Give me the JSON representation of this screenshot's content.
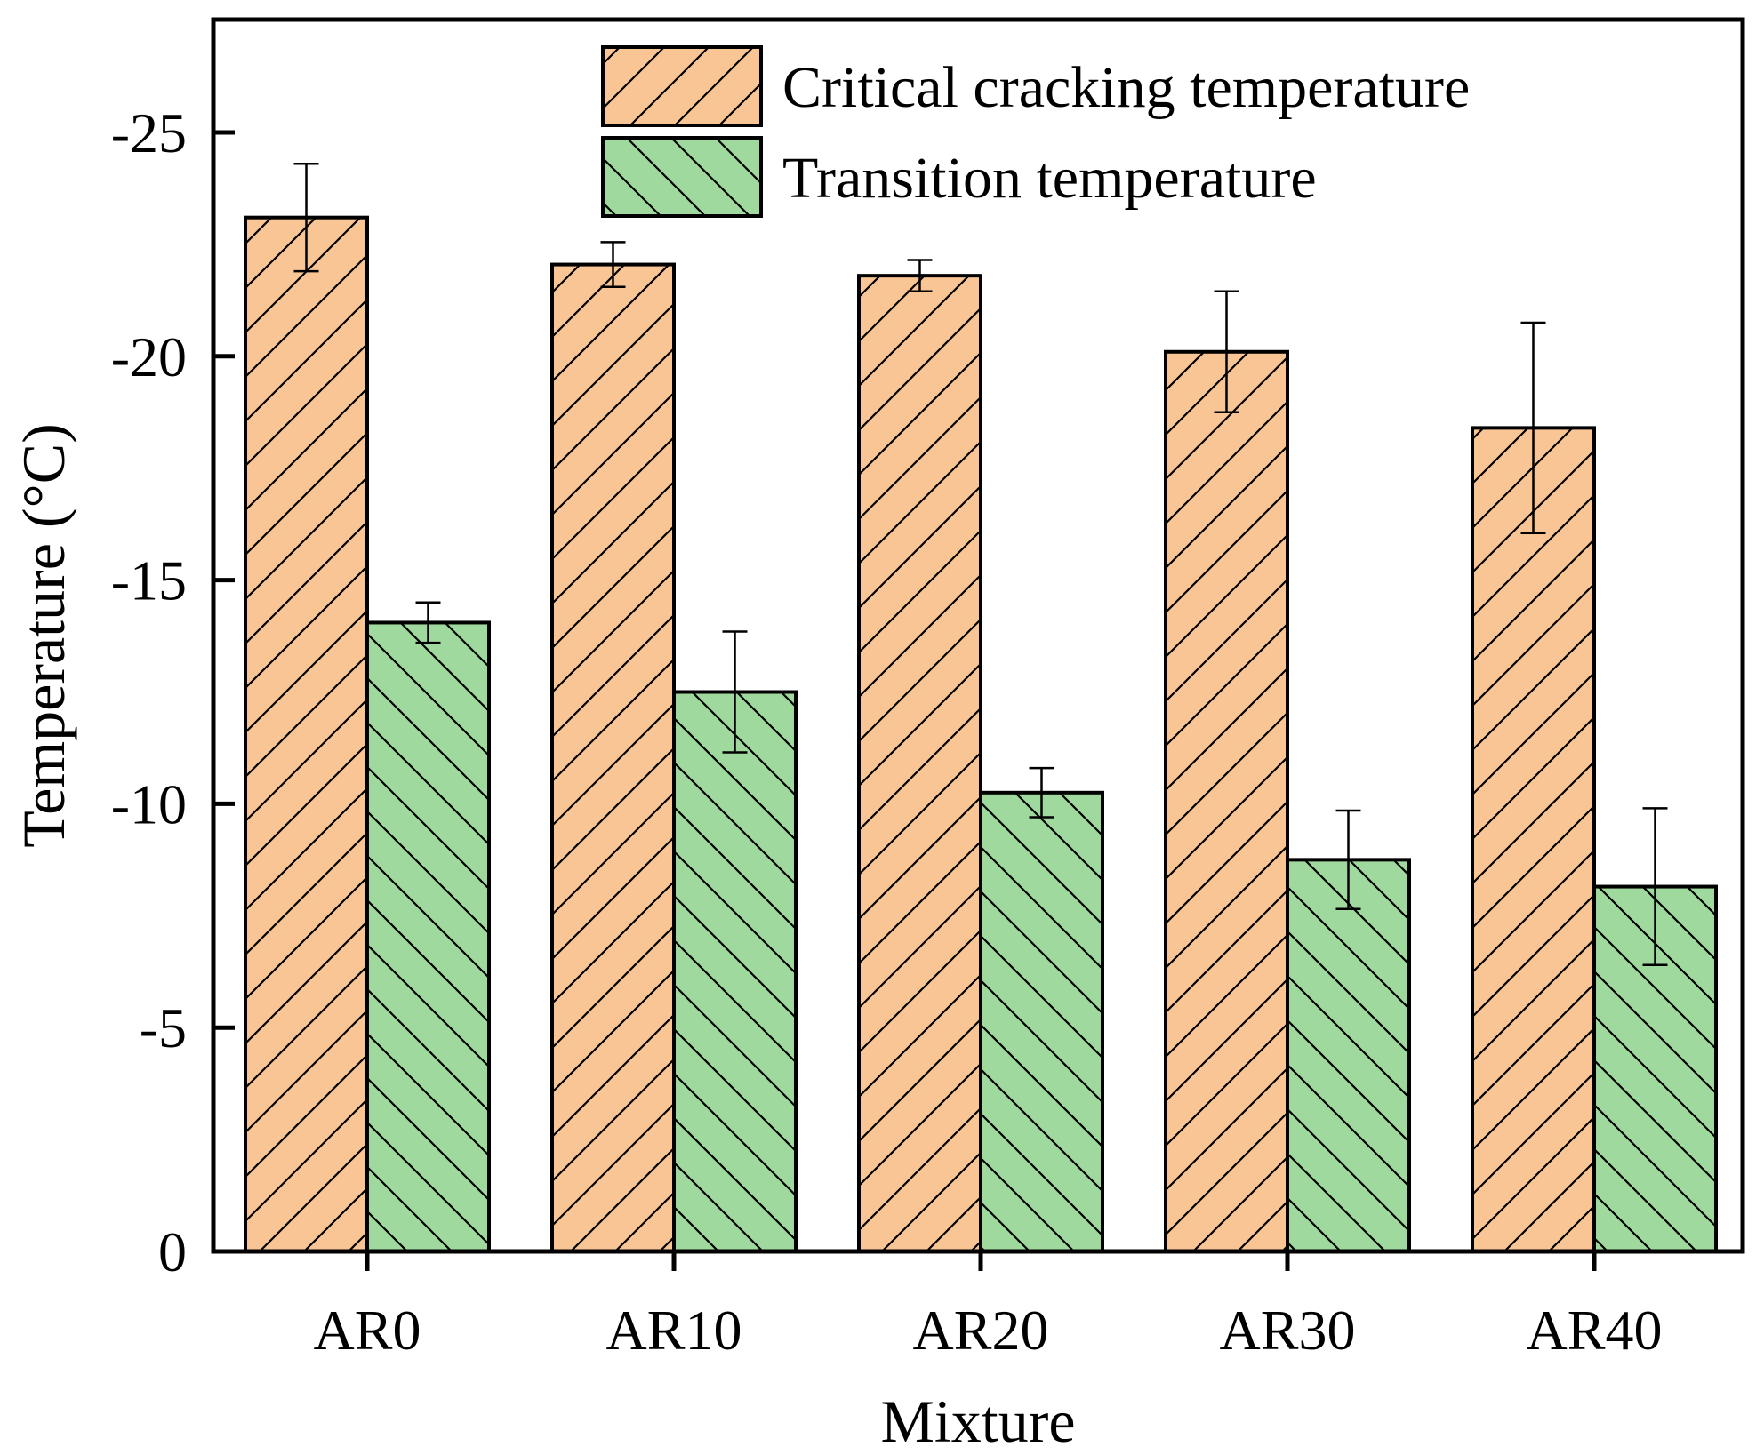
{
  "chart_data": {
    "type": "bar",
    "title": "",
    "xlabel": "Mixture",
    "ylabel": "Temperature (°C)",
    "categories": [
      "AR0",
      "AR10",
      "AR20",
      "AR30",
      "AR40"
    ],
    "ylim": [
      0,
      -27.5
    ],
    "yticks": [
      "0",
      "-5",
      "-10",
      "-15",
      "-20",
      "-25"
    ],
    "ytick_values": [
      0,
      -5,
      -10,
      -15,
      -20,
      -25
    ],
    "legend_position": "top-right",
    "series": [
      {
        "name": "Critical cracking temperature",
        "color": "#f9c594",
        "hatch": "forward-diagonal",
        "values": [
          -23.1,
          -22.05,
          -21.8,
          -20.1,
          -18.4
        ],
        "errors": [
          1.2,
          0.5,
          0.35,
          1.35,
          2.35
        ]
      },
      {
        "name": "Transition temperature",
        "color": "#a0d99e",
        "hatch": "back-diagonal",
        "values": [
          -14.05,
          -12.5,
          -10.25,
          -8.75,
          -8.15
        ],
        "errors": [
          0.45,
          1.35,
          0.55,
          1.1,
          1.75
        ]
      }
    ]
  }
}
